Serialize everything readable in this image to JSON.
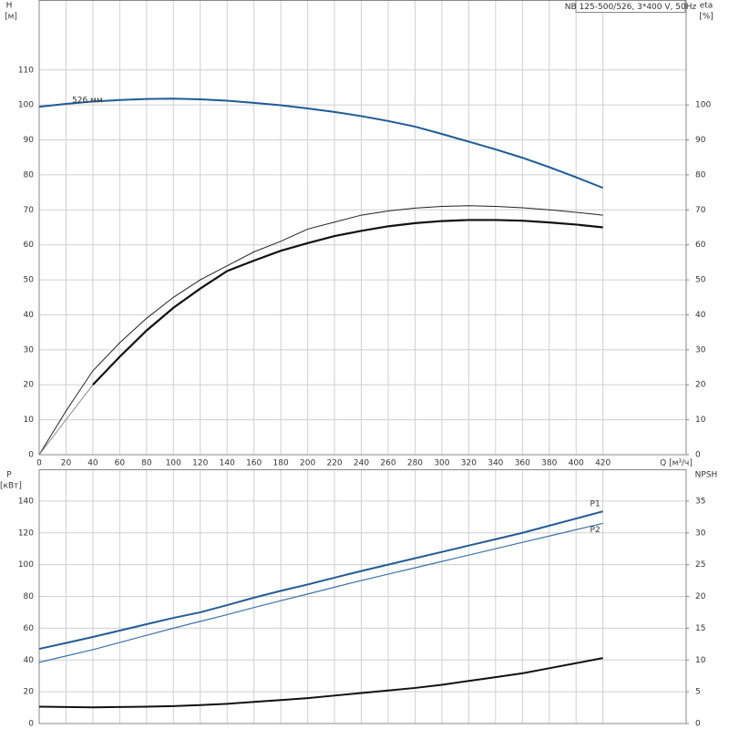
{
  "chart_data": [
    {
      "type": "line",
      "title": "NB 125-500/526, 3*400 V, 50Hz",
      "ylabel": "H",
      "yunit": "[м]",
      "y2label": "eta",
      "y2unit": "[%]",
      "xlabel": "Q [м³/ч]",
      "x": [
        0,
        20,
        40,
        60,
        80,
        100,
        120,
        140,
        160,
        180,
        200,
        220,
        240,
        260,
        280,
        300,
        320,
        340,
        360,
        380,
        400,
        420
      ],
      "xlim": [
        0,
        482
      ],
      "xticks": [
        0,
        20,
        40,
        60,
        80,
        100,
        120,
        140,
        160,
        180,
        200,
        220,
        240,
        260,
        280,
        300,
        320,
        340,
        360,
        380,
        400,
        420
      ],
      "ylim": [
        0,
        130
      ],
      "yticks": [
        0,
        10,
        20,
        30,
        40,
        50,
        60,
        70,
        80,
        90,
        100,
        110
      ],
      "y2lim": [
        0,
        130
      ],
      "y2ticks": [
        0,
        10,
        20,
        30,
        40,
        50,
        60,
        70,
        80,
        90,
        100
      ],
      "grid": true,
      "series": [
        {
          "name": "526 мм",
          "color": "#1f5a96",
          "width": 2,
          "values": [
            99.5,
            100.3,
            101,
            101.4,
            101.7,
            101.8,
            101.6,
            101.2,
            100.6,
            99.9,
            99,
            98,
            96.8,
            95.4,
            93.8,
            91.7,
            89.5,
            87.3,
            84.9,
            82.2,
            79.3,
            76.3
          ]
        },
        {
          "color": "#222222",
          "width": 1,
          "axis": "y2",
          "values": [
            0,
            12.5,
            24,
            32,
            39,
            45,
            50,
            54,
            58,
            61,
            64.5,
            66.5,
            68.5,
            69.7,
            70.5,
            71,
            71.2,
            71,
            70.6,
            70,
            69.3,
            68.5
          ]
        },
        {
          "color": "#888888",
          "width": 1,
          "axis": "y2",
          "values": [
            0,
            10,
            20,
            null,
            null,
            null,
            null,
            null,
            null,
            null,
            null,
            null,
            null,
            null,
            null,
            null,
            null,
            null,
            null,
            null,
            null,
            null
          ]
        },
        {
          "color": "#111111",
          "width": 2.2,
          "axis": "y2",
          "values": [
            null,
            null,
            20,
            28,
            35.5,
            42,
            47.5,
            52.5,
            55.5,
            58.3,
            60.5,
            62.5,
            64,
            65.3,
            66.2,
            66.8,
            67.1,
            67.1,
            66.9,
            66.4,
            65.8,
            65
          ]
        }
      ]
    },
    {
      "type": "line",
      "ylabel": "P",
      "yunit": "[кВт]",
      "y2label": "NPSH",
      "x": [
        0,
        20,
        40,
        60,
        80,
        100,
        120,
        140,
        160,
        180,
        200,
        220,
        240,
        260,
        280,
        300,
        320,
        340,
        360,
        380,
        400,
        420
      ],
      "xlim": [
        0,
        482
      ],
      "xticks": [
        0,
        20,
        40,
        60,
        80,
        100,
        120,
        140,
        160,
        180,
        200,
        220,
        240,
        260,
        280,
        300,
        320,
        340,
        360,
        380,
        400,
        420
      ],
      "ylim": [
        0,
        160
      ],
      "yticks": [
        0,
        20,
        40,
        60,
        80,
        100,
        120,
        140
      ],
      "y2lim": [
        0,
        40
      ],
      "y2ticks": [
        0,
        5,
        10,
        15,
        20,
        25,
        30,
        35
      ],
      "grid": true,
      "series": [
        {
          "name": "P1",
          "color": "#245b95",
          "width": 2,
          "values": [
            47,
            50.7,
            54.5,
            58.5,
            62.5,
            66.5,
            70,
            74.5,
            79.2,
            83.5,
            87.5,
            91.8,
            96,
            100,
            104,
            108,
            112,
            116,
            120,
            124.5,
            129,
            133.5
          ]
        },
        {
          "name": "P2",
          "color": "#3f73aa",
          "width": 1.2,
          "values": [
            38.5,
            42.5,
            46.5,
            51,
            55.5,
            60,
            64.3,
            68.5,
            73,
            77.3,
            81.5,
            85.8,
            90,
            94,
            98,
            102,
            106,
            110,
            114,
            118,
            122,
            126
          ]
        },
        {
          "color": "#111111",
          "width": 2,
          "axis": "y2",
          "values": [
            2.65,
            2.6,
            2.55,
            2.6,
            2.65,
            2.75,
            2.9,
            3.1,
            3.4,
            3.7,
            4,
            4.4,
            4.8,
            5.2,
            5.6,
            6.1,
            6.7,
            7.3,
            7.9,
            8.7,
            9.5,
            10.3
          ]
        }
      ]
    }
  ]
}
